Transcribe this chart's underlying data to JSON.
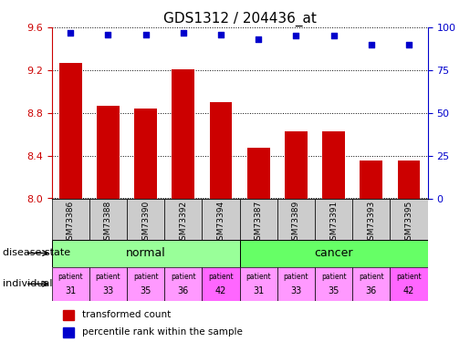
{
  "title": "GDS1312 / 204436_at",
  "samples": [
    "GSM73386",
    "GSM73388",
    "GSM73390",
    "GSM73392",
    "GSM73394",
    "GSM73387",
    "GSM73389",
    "GSM73391",
    "GSM73393",
    "GSM73395"
  ],
  "transformed_count": [
    9.27,
    8.87,
    8.84,
    9.21,
    8.9,
    8.47,
    8.63,
    8.63,
    8.35,
    8.35
  ],
  "percentile_rank": [
    97,
    96,
    96,
    97,
    96,
    93,
    95,
    95,
    90,
    90
  ],
  "ylim_left": [
    8.0,
    9.6
  ],
  "ylim_right": [
    0,
    100
  ],
  "yticks_left": [
    8.0,
    8.4,
    8.8,
    9.2,
    9.6
  ],
  "yticks_right": [
    0,
    25,
    50,
    75,
    100
  ],
  "bar_color": "#cc0000",
  "dot_color": "#0000cc",
  "normal_color": "#99ff99",
  "cancer_color": "#66ff66",
  "individual_numbers": [
    "31",
    "33",
    "35",
    "36",
    "42",
    "31",
    "33",
    "35",
    "36",
    "42"
  ],
  "individual_colors": [
    "#ff99ff",
    "#ff99ff",
    "#ff99ff",
    "#ff99ff",
    "#ff66ff",
    "#ff99ff",
    "#ff99ff",
    "#ff99ff",
    "#ff99ff",
    "#ff66ff"
  ],
  "grid_color": "#000000",
  "tick_color_left": "#cc0000",
  "tick_color_right": "#0000cc",
  "bar_width": 0.6,
  "sample_box_color": "#cccccc"
}
